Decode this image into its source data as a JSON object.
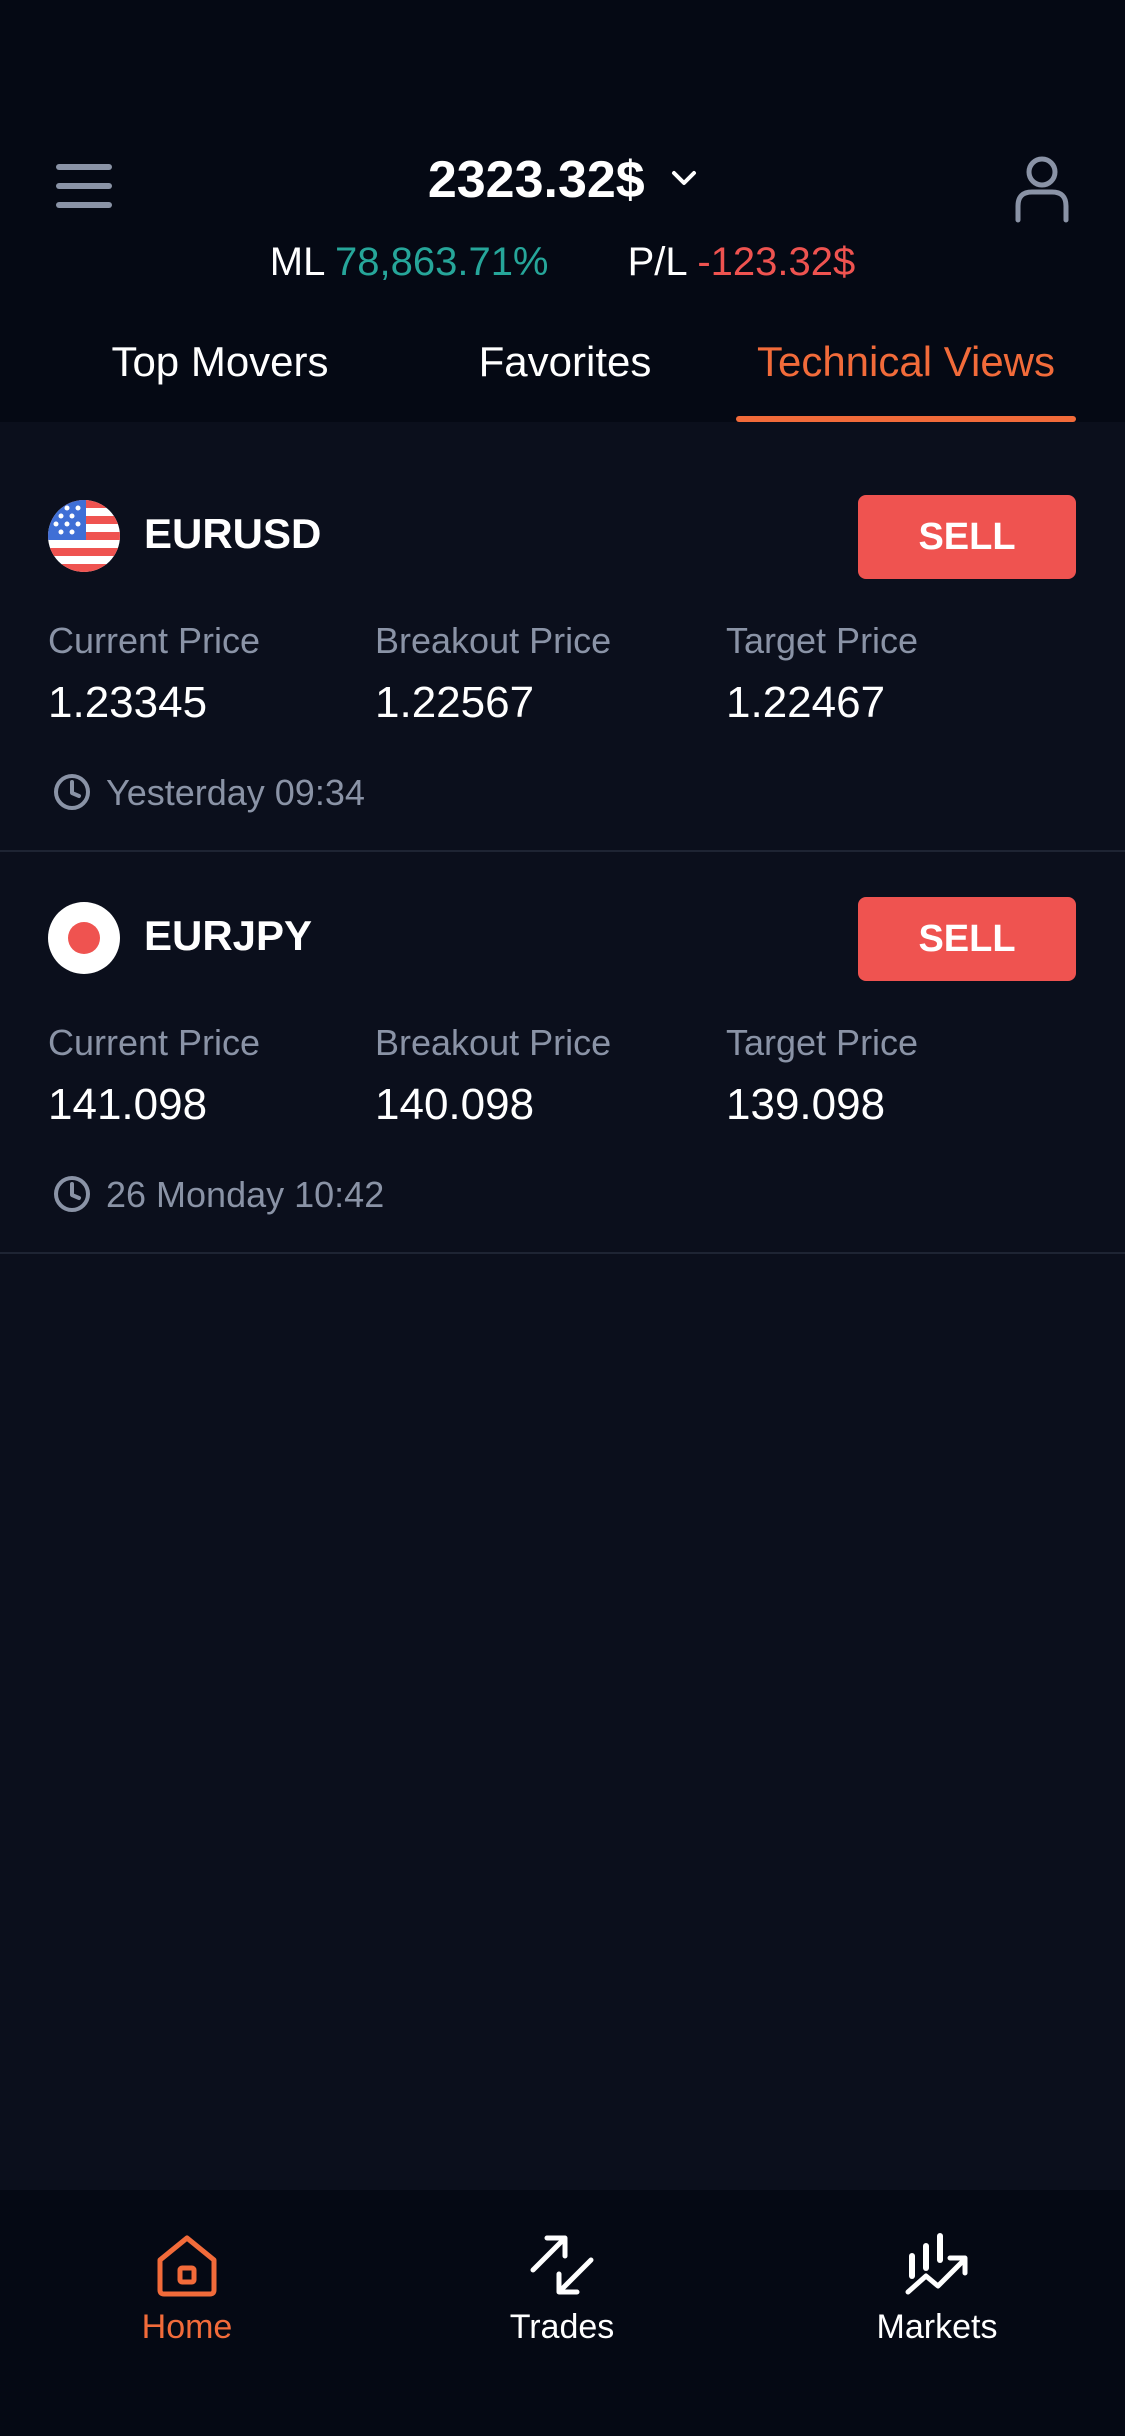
{
  "header": {
    "balance": "2323.32$",
    "ml_label": "ML",
    "ml_value": "78,863.71%",
    "pl_label": "P/L",
    "pl_value": "-123.32$"
  },
  "tabs": [
    {
      "label": "Top Movers",
      "active": false
    },
    {
      "label": "Favorites",
      "active": false
    },
    {
      "label": "Technical Views",
      "active": true
    }
  ],
  "items": [
    {
      "symbol": "EURUSD",
      "flag": "us-flag",
      "action": "SELL",
      "current_label": "Current Price",
      "current": "1.23345",
      "breakout_label": "Breakout Price",
      "breakout": "1.22567",
      "target_label": "Target Price",
      "target": "1.22467",
      "time": "Yesterday 09:34"
    },
    {
      "symbol": "EURJPY",
      "flag": "jp-flag",
      "action": "SELL",
      "current_label": "Current Price",
      "current": "141.098",
      "breakout_label": "Breakout Price",
      "breakout": "140.098",
      "target_label": "Target Price",
      "target": "139.098",
      "time": "26 Monday 10:42"
    }
  ],
  "nav": [
    {
      "label": "Home",
      "icon": "home-icon",
      "active": true
    },
    {
      "label": "Trades",
      "icon": "trades-icon",
      "active": false
    },
    {
      "label": "Markets",
      "icon": "markets-icon",
      "active": false
    }
  ],
  "colors": {
    "accent": "#f26b3a",
    "positive": "#26a69a",
    "negative": "#ef5350",
    "background": "#0b0f1c",
    "header_bg": "#050914",
    "muted_text": "#8a93a6"
  }
}
